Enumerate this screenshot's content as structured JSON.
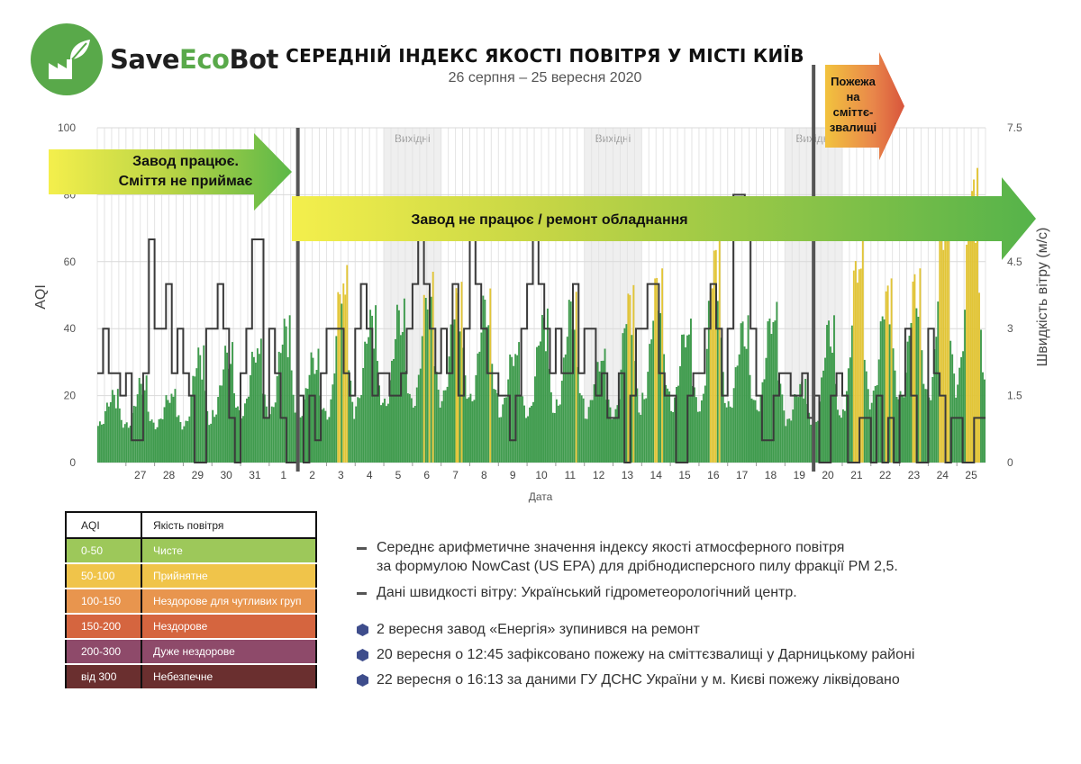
{
  "brand": {
    "save": "Save",
    "eco": "Eco",
    "bot": "Bot"
  },
  "header": {
    "title": "СЕРЕДНІЙ ІНДЕКС ЯКОСТІ ПОВІТРЯ У МІСТІ КИЇВ",
    "subtitle": "26 серпня – 25 вересня 2020"
  },
  "chart_data": {
    "type": "area",
    "ylabel_left": "AQI",
    "ylabel_right": "Швидкість вітру (м/с)",
    "xlabel": "Дата",
    "ylim_left": [
      0,
      100
    ],
    "ylim_right": [
      0,
      7.5
    ],
    "yticks_left": [
      0,
      20,
      40,
      60,
      80,
      100
    ],
    "yticks_right": [
      0,
      1.5,
      3,
      4.5,
      6,
      7.5
    ],
    "ytick_labels_right": [
      "0",
      "1.5",
      "3",
      "4.5",
      "6",
      "7.5"
    ],
    "x_days": [
      "27",
      "28",
      "29",
      "30",
      "31",
      "1",
      "2",
      "3",
      "4",
      "5",
      "6",
      "7",
      "8",
      "9",
      "10",
      "11",
      "12",
      "13",
      "14",
      "15",
      "16",
      "17",
      "18",
      "19",
      "20",
      "21",
      "22",
      "23",
      "24",
      "25"
    ],
    "grid": true,
    "weekend_label": "Вихідні",
    "weekend_days": [
      "5",
      "6",
      "12",
      "13",
      "19",
      "20"
    ],
    "event_lines": [
      "2",
      "20"
    ],
    "aqi_daily_peaks": [
      {
        "day": "26",
        "value": 22
      },
      {
        "day": "27",
        "value": 26
      },
      {
        "day": "28",
        "value": 22
      },
      {
        "day": "29",
        "value": 35
      },
      {
        "day": "30",
        "value": 36
      },
      {
        "day": "31",
        "value": 37
      },
      {
        "day": "1",
        "value": 44
      },
      {
        "day": "2",
        "value": 34
      },
      {
        "day": "3",
        "value": 59
      },
      {
        "day": "4",
        "value": 47
      },
      {
        "day": "5",
        "value": 49
      },
      {
        "day": "6",
        "value": 57
      },
      {
        "day": "7",
        "value": 54
      },
      {
        "day": "8",
        "value": 52
      },
      {
        "day": "9",
        "value": 36
      },
      {
        "day": "10",
        "value": 46
      },
      {
        "day": "11",
        "value": 51
      },
      {
        "day": "12",
        "value": 34
      },
      {
        "day": "13",
        "value": 53
      },
      {
        "day": "14",
        "value": 58
      },
      {
        "day": "15",
        "value": 43
      },
      {
        "day": "16",
        "value": 67
      },
      {
        "day": "17",
        "value": 44
      },
      {
        "day": "18",
        "value": 48
      },
      {
        "day": "19",
        "value": 25
      },
      {
        "day": "20",
        "value": 44
      },
      {
        "day": "21",
        "value": 67
      },
      {
        "day": "22",
        "value": 55
      },
      {
        "day": "23",
        "value": 58
      },
      {
        "day": "24",
        "value": 79
      },
      {
        "day": "25",
        "value": 88
      }
    ],
    "wind_daily": [
      {
        "day": "26",
        "values": [
          2,
          3,
          2,
          2,
          1.5
        ]
      },
      {
        "day": "27",
        "values": [
          2,
          0.5,
          0.5,
          2,
          5
        ]
      },
      {
        "day": "28",
        "values": [
          3,
          3,
          4,
          2,
          3
        ]
      },
      {
        "day": "29",
        "values": [
          2,
          1.5,
          0,
          0,
          3
        ]
      },
      {
        "day": "30",
        "values": [
          3,
          4,
          3,
          1,
          0
        ]
      },
      {
        "day": "31",
        "values": [
          2,
          3,
          5,
          5,
          1
        ]
      },
      {
        "day": "1",
        "values": [
          3,
          2,
          1,
          0,
          0
        ]
      },
      {
        "day": "2",
        "values": [
          1.5,
          0,
          1.5,
          0.5,
          2
        ]
      },
      {
        "day": "3",
        "values": [
          3,
          3,
          3,
          2,
          1.5
        ]
      },
      {
        "day": "4",
        "values": [
          3,
          4,
          3,
          1.5,
          2
        ]
      },
      {
        "day": "5",
        "values": [
          2,
          1.5,
          1.5,
          2,
          3
        ]
      },
      {
        "day": "6",
        "values": [
          4,
          5,
          4,
          3,
          2
        ]
      },
      {
        "day": "7",
        "values": [
          3,
          2,
          4,
          1.5,
          3
        ]
      },
      {
        "day": "8",
        "values": [
          5,
          4,
          3,
          2,
          2
        ]
      },
      {
        "day": "9",
        "values": [
          1.5,
          1.5,
          0.5,
          1.5,
          3
        ]
      },
      {
        "day": "10",
        "values": [
          4,
          5,
          4,
          3,
          2
        ]
      },
      {
        "day": "11",
        "values": [
          3,
          2,
          2,
          4,
          2
        ]
      },
      {
        "day": "12",
        "values": [
          3,
          3,
          1.5,
          2,
          1
        ]
      },
      {
        "day": "13",
        "values": [
          1,
          2,
          0,
          1.5,
          3
        ]
      },
      {
        "day": "14",
        "values": [
          3,
          4,
          4,
          2,
          1.5
        ]
      },
      {
        "day": "15",
        "values": [
          1.5,
          0,
          0,
          1.5,
          2
        ]
      },
      {
        "day": "16",
        "values": [
          2,
          3,
          4,
          3,
          1.5
        ]
      },
      {
        "day": "17",
        "values": [
          3,
          6,
          6,
          5,
          3
        ]
      },
      {
        "day": "18",
        "values": [
          1.5,
          0.5,
          0.5,
          1.5,
          2
        ]
      },
      {
        "day": "19",
        "values": [
          2,
          1.5,
          1.5,
          2,
          1
        ]
      },
      {
        "day": "20",
        "values": [
          1.5,
          0,
          0,
          1.5,
          2
        ]
      },
      {
        "day": "21",
        "values": [
          1.5,
          0,
          0,
          1,
          1
        ]
      },
      {
        "day": "22",
        "values": [
          0,
          1.5,
          0,
          1,
          0
        ]
      },
      {
        "day": "23",
        "values": [
          1.5,
          3,
          1.5,
          0,
          0
        ]
      },
      {
        "day": "24",
        "values": [
          3,
          2,
          1.5,
          0,
          1
        ]
      },
      {
        "day": "25",
        "values": [
          1,
          0,
          0,
          1,
          1
        ]
      }
    ]
  },
  "annotations": {
    "arrow_before": "Завод працює. Сміття не приймає",
    "arrow_before_lines": [
      "Завод працює.",
      "Сміття не приймає"
    ],
    "arrow_after": "Завод не працює / ремонт обладнання",
    "arrow_fire_lines": [
      "Пожежа",
      "на",
      "сміттє-",
      "звалищі"
    ]
  },
  "legend": {
    "header": {
      "aqi": "AQI",
      "quality": "Якість повітря"
    },
    "rows": [
      {
        "range": "0-50",
        "label": "Чисте",
        "color": "#9dc85a",
        "text": "#ffffff"
      },
      {
        "range": "50-100",
        "label": "Прийнятне",
        "color": "#f0c44a",
        "text": "#ffffff"
      },
      {
        "range": "100-150",
        "label": "Нездорове для чутливих груп",
        "color": "#e8954e",
        "text": "#ffffff"
      },
      {
        "range": "150-200",
        "label": "Нездорове",
        "color": "#d5653f",
        "text": "#ffffff"
      },
      {
        "range": "200-300",
        "label": "Дуже нездорове",
        "color": "#8e4a6a",
        "text": "#ffffff"
      },
      {
        "range": "від 300",
        "label": "Небезпечне",
        "color": "#6a2f2f",
        "text": "#ffffff"
      }
    ]
  },
  "notes": {
    "lines": [
      "Середнє арифметичне значення індексу якості атмосферного повітря",
      "за формулою NowCast (US EPA) для дрібнодисперсного пилу фракції PM 2,5.",
      "Дані швидкості вітру: Український гідрометеорологічний центр."
    ],
    "events": [
      "2 вересня завод «Енергія» зупинився на ремонт",
      "20 вересня о 12:45 зафіксовано пожежу на сміттєзвалищі у Дарницькому районі",
      "22 вересня о 16:13 за даними ГУ ДСНС України у м. Києві пожежу ліквідовано"
    ]
  },
  "colors": {
    "aqi_good": "#3f9b4d",
    "aqi_moderate": "#e2c537",
    "wind_line": "#3a3a3a",
    "event_line": "#555555",
    "weekend_band": "#efefef"
  }
}
